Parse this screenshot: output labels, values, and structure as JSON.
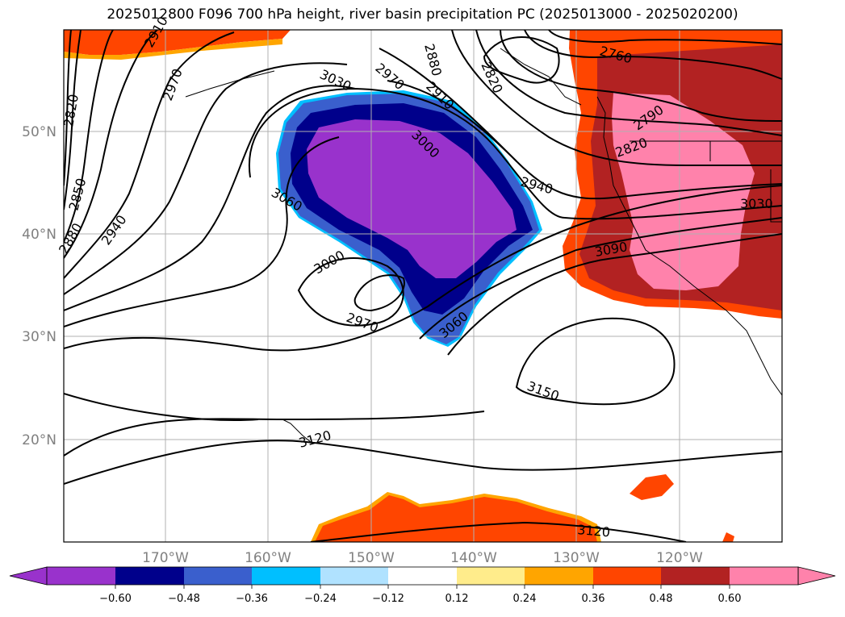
{
  "title": "2025012800 F096 700 hPa height, river basin precipitation PC (2025013000 - 2025020200)",
  "map": {
    "lat_labels": [
      "50°N",
      "40°N",
      "30°N",
      "20°N"
    ],
    "lon_labels": [
      "170°W",
      "160°W",
      "150°W",
      "140°W",
      "130°W",
      "120°W"
    ],
    "contour_labels": [
      "2910",
      "2970",
      "3030",
      "2880",
      "2820",
      "2850",
      "2940",
      "2880",
      "2970",
      "2910",
      "2820",
      "2760",
      "2790",
      "2820",
      "3000",
      "2940",
      "3030",
      "3060",
      "3090",
      "3000",
      "2970",
      "3060",
      "3150",
      "3120",
      "3120"
    ]
  },
  "colorbar": {
    "ticks": [
      "−0.60",
      "−0.48",
      "−0.36",
      "−0.24",
      "−0.12",
      "0.12",
      "0.24",
      "0.36",
      "0.48",
      "0.60"
    ],
    "colors": [
      "#9932CC",
      "#00008B",
      "#3A5FCD",
      "#00BFFF",
      "#B0E2FF",
      "#FFFFFF",
      "#FFEC8B",
      "#FFA500",
      "#FF4500",
      "#B22222",
      "#FF82AB"
    ]
  }
}
